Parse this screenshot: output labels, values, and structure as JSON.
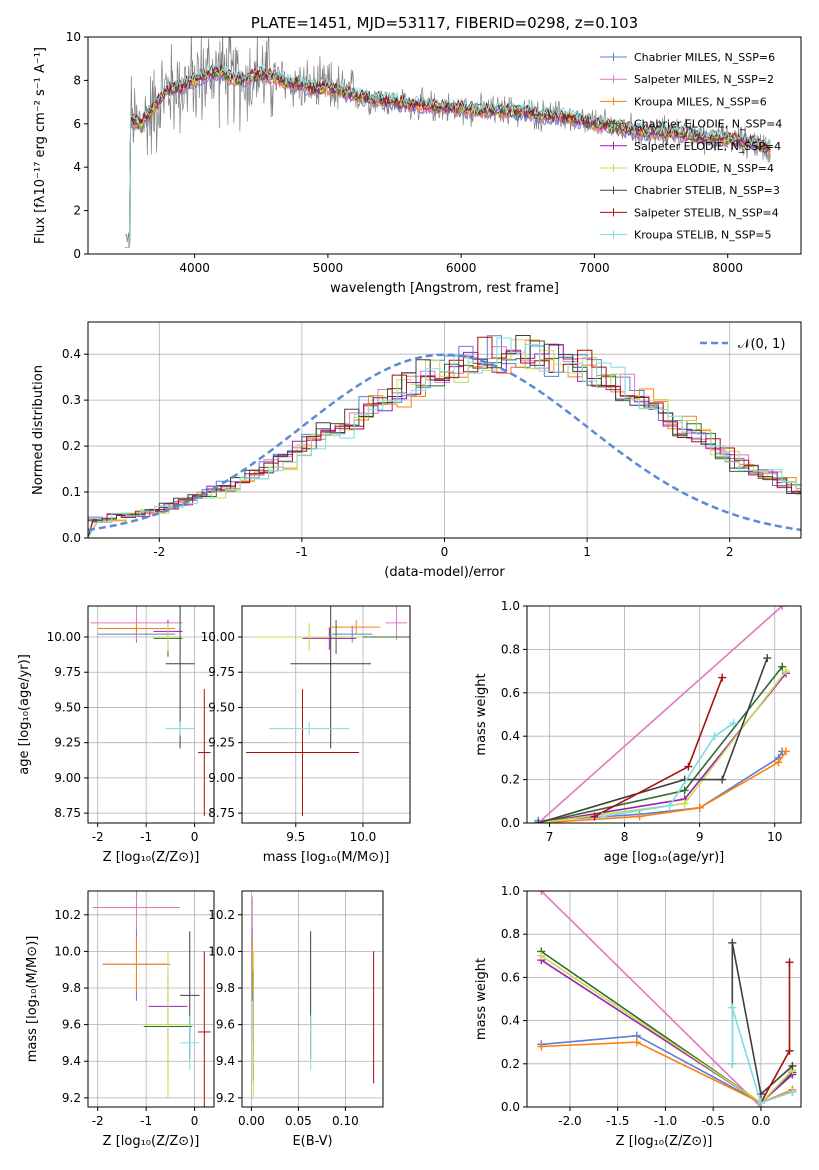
{
  "chart_data": [
    {
      "type": "line",
      "title": "PLATE=1451, MJD=53117, FIBERID=0298, z=0.103",
      "xlabel": "wavelength [Angstrom, rest frame]",
      "ylabel": "Flux [fλ10⁻¹⁷ erg cm⁻² s⁻¹ A⁻¹]",
      "xlim": [
        3200,
        8550
      ],
      "ylim": [
        0,
        10
      ],
      "xticks": [
        4000,
        5000,
        6000,
        7000,
        8000
      ],
      "yticks": [
        0,
        2,
        4,
        6,
        8,
        10
      ],
      "grid": false,
      "legend_position": "top-right",
      "data_series": {
        "name": "",
        "color": "#808080"
      },
      "series": [
        {
          "name": "Chabrier MILES, N_SSP=6",
          "color": "#5b7fd6"
        },
        {
          "name": "Salpeter MILES, N_SSP=2",
          "color": "#e377c2"
        },
        {
          "name": "Kroupa MILES, N_SSP=6",
          "color": "#ff7f0e"
        },
        {
          "name": "Chabrier ELODIE, N_SSP=4",
          "color": "#2e6b2e"
        },
        {
          "name": "Salpeter ELODIE, N_SSP=4",
          "color": "#9b1fb5"
        },
        {
          "name": "Kroupa ELODIE, N_SSP=4",
          "color": "#c8dc50"
        },
        {
          "name": "Chabrier STELIB, N_SSP=3",
          "color": "#404040"
        },
        {
          "name": "Salpeter STELIB, N_SSP=4",
          "color": "#a81010"
        },
        {
          "name": "Kroupa STELIB, N_SSP=5",
          "color": "#7fdde0"
        }
      ],
      "continuum": {
        "x": [
          3480,
          3600,
          3700,
          3800,
          3900,
          4000,
          4100,
          4200,
          4300,
          4400,
          4500,
          4600,
          4700,
          4800,
          4900,
          5000,
          5200,
          5400,
          5600,
          5800,
          6000,
          6200,
          6400,
          6600,
          6800,
          7000,
          7200,
          7400,
          7600,
          7800,
          8000,
          8200,
          8300
        ],
        "y": [
          6.1,
          6.0,
          6.8,
          7.6,
          7.7,
          8.0,
          8.3,
          8.4,
          8.0,
          8.1,
          8.3,
          8.1,
          7.9,
          7.8,
          7.6,
          7.7,
          7.3,
          7.1,
          6.9,
          6.8,
          6.7,
          6.6,
          6.6,
          6.4,
          6.3,
          6.0,
          5.8,
          5.6,
          5.6,
          5.4,
          5.3,
          5.1,
          4.9
        ]
      }
    },
    {
      "type": "bar",
      "title": "",
      "xlabel": "(data-model)/error",
      "ylabel": "Normed distribution",
      "xlim": [
        -2.5,
        2.5
      ],
      "ylim": [
        0,
        0.47
      ],
      "xticks": [
        -2,
        -1,
        0,
        1,
        2
      ],
      "yticks": [
        0.0,
        0.1,
        0.2,
        0.3,
        0.4
      ],
      "grid": true,
      "legend_position": "top-right",
      "reference": {
        "name": "𝒩(0, 1)",
        "color": "#5b8bd6",
        "mean": 0,
        "sigma": 1
      },
      "bin_edges_start": -2.5,
      "bin_width": 0.1,
      "histogram_envelope": [
        0.04,
        0.045,
        0.05,
        0.055,
        0.06,
        0.07,
        0.08,
        0.09,
        0.1,
        0.11,
        0.125,
        0.14,
        0.155,
        0.17,
        0.19,
        0.21,
        0.225,
        0.245,
        0.265,
        0.285,
        0.305,
        0.32,
        0.34,
        0.355,
        0.37,
        0.38,
        0.39,
        0.395,
        0.4,
        0.4,
        0.4,
        0.395,
        0.39,
        0.38,
        0.37,
        0.355,
        0.34,
        0.32,
        0.305,
        0.285,
        0.265,
        0.245,
        0.225,
        0.205,
        0.185,
        0.165,
        0.15,
        0.135,
        0.12,
        0.105
      ]
    },
    {
      "type": "scatter",
      "title": "",
      "xlabel": "Z [log₁₀(Z/Z⊙)]",
      "ylabel": "age  [log₁₀(age/yr)]",
      "xlim": [
        -2.2,
        0.4
      ],
      "ylim": [
        8.68,
        10.22
      ],
      "xticks": [
        -2,
        -1,
        0
      ],
      "yticks": [
        8.75,
        9.0,
        9.25,
        9.5,
        9.75,
        10.0
      ],
      "grid": true,
      "points": [
        {
          "x": -1.2,
          "y": 10.02,
          "xerr": 0.8,
          "yerr": 0.06,
          "color": "#5b7fd6"
        },
        {
          "x": -1.2,
          "y": 10.1,
          "xerr": 0.95,
          "yerr": 0.12,
          "color": "#e377c2"
        },
        {
          "x": -1.2,
          "y": 10.06,
          "xerr": 0.8,
          "yerr": 0.05,
          "color": "#ff7f0e"
        },
        {
          "x": -0.55,
          "y": 9.99,
          "xerr": 0.3,
          "yerr": 0.13,
          "color": "#2e6b2e"
        },
        {
          "x": -0.55,
          "y": 10.04,
          "xerr": 0.3,
          "yerr": 0.08,
          "color": "#9b1fb5"
        },
        {
          "x": -0.55,
          "y": 10.0,
          "xerr": 0.3,
          "yerr": 0.1,
          "color": "#c8dc50"
        },
        {
          "x": -0.3,
          "y": 9.81,
          "xerr": 0.3,
          "yerr": 0.6,
          "color": "#404040"
        },
        {
          "x": 0.2,
          "y": 9.18,
          "xerr": 0.13,
          "yerr": 0.45,
          "color": "#a81010"
        },
        {
          "x": -0.3,
          "y": 9.35,
          "xerr": 0.3,
          "yerr": 0.05,
          "color": "#7fdde0"
        }
      ]
    },
    {
      "type": "scatter",
      "title": "",
      "xlabel": "mass [log₁₀(M/M⊙)]",
      "ylabel": "",
      "xlim": [
        9.1,
        10.35
      ],
      "ylim": [
        8.68,
        10.22
      ],
      "xticks": [
        9.5,
        10.0
      ],
      "yticks": [
        8.75,
        9.0,
        9.25,
        9.5,
        9.75,
        10.0
      ],
      "grid": true,
      "points": [
        {
          "x": 9.92,
          "y": 10.02,
          "xerr": 0.15,
          "yerr": 0.06,
          "color": "#5b7fd6"
        },
        {
          "x": 10.25,
          "y": 10.1,
          "xerr": 0.08,
          "yerr": 0.12,
          "color": "#e377c2"
        },
        {
          "x": 9.95,
          "y": 10.07,
          "xerr": 0.18,
          "yerr": 0.05,
          "color": "#ff7f0e"
        },
        {
          "x": 9.8,
          "y": 10.0,
          "xerr": 0.55,
          "yerr": 0.12,
          "color": "#2e6b2e"
        },
        {
          "x": 9.75,
          "y": 9.99,
          "xerr": 0.2,
          "yerr": 0.08,
          "color": "#9b1fb5"
        },
        {
          "x": 9.6,
          "y": 10.0,
          "xerr": 0.4,
          "yerr": 0.1,
          "color": "#c8dc50"
        },
        {
          "x": 9.76,
          "y": 9.81,
          "xerr": 0.3,
          "yerr": 0.6,
          "color": "#404040"
        },
        {
          "x": 9.55,
          "y": 9.18,
          "xerr": 0.42,
          "yerr": 0.45,
          "color": "#a81010"
        },
        {
          "x": 9.6,
          "y": 9.35,
          "xerr": 0.3,
          "yerr": 0.05,
          "color": "#7fdde0"
        }
      ]
    },
    {
      "type": "line",
      "title": "",
      "xlabel": "age  [log₁₀(age/yr)]",
      "ylabel": "mass weight",
      "xlim": [
        6.7,
        10.35
      ],
      "ylim": [
        0,
        1
      ],
      "xticks": [
        7,
        8,
        9,
        10
      ],
      "yticks": [
        0.0,
        0.2,
        0.4,
        0.6,
        0.8,
        1.0
      ],
      "grid": true,
      "series": [
        {
          "color": "#5b7fd6",
          "x": [
            6.85,
            8.2,
            9.0,
            10.05,
            10.1
          ],
          "y": [
            0.01,
            0.04,
            0.07,
            0.3,
            0.33
          ]
        },
        {
          "color": "#e377c2",
          "x": [
            6.85,
            10.1
          ],
          "y": [
            0.0,
            1.0
          ]
        },
        {
          "color": "#ff7f0e",
          "x": [
            6.85,
            8.2,
            9.0,
            10.05,
            10.15
          ],
          "y": [
            0.0,
            0.03,
            0.07,
            0.28,
            0.33
          ]
        },
        {
          "color": "#2e6b2e",
          "x": [
            6.85,
            8.8,
            10.1
          ],
          "y": [
            0.0,
            0.15,
            0.72
          ]
        },
        {
          "color": "#9b1fb5",
          "x": [
            6.85,
            8.8,
            10.15
          ],
          "y": [
            0.0,
            0.11,
            0.69
          ]
        },
        {
          "color": "#c8dc50",
          "x": [
            6.85,
            8.8,
            10.15
          ],
          "y": [
            0.0,
            0.09,
            0.7
          ]
        },
        {
          "color": "#404040",
          "x": [
            6.85,
            8.8,
            9.3,
            9.9
          ],
          "y": [
            0.0,
            0.2,
            0.2,
            0.76
          ]
        },
        {
          "color": "#a81010",
          "x": [
            7.6,
            8.85,
            9.3
          ],
          "y": [
            0.03,
            0.26,
            0.67
          ]
        },
        {
          "color": "#7fdde0",
          "x": [
            7.7,
            8.6,
            9.2,
            9.45
          ],
          "y": [
            0.03,
            0.08,
            0.4,
            0.46
          ]
        }
      ]
    },
    {
      "type": "scatter",
      "title": "",
      "xlabel": "Z [log₁₀(Z/Z⊙)]",
      "ylabel": "mass [log₁₀(M/M⊙)]",
      "xlim": [
        -2.2,
        0.4
      ],
      "ylim": [
        9.15,
        10.33
      ],
      "xticks": [
        -2,
        -1,
        0
      ],
      "yticks": [
        9.2,
        9.4,
        9.6,
        9.8,
        10.0,
        10.2
      ],
      "grid": true,
      "points": [
        {
          "x": -1.2,
          "y": 9.93,
          "xerr": 0.7,
          "yerr": 0.2,
          "color": "#5b7fd6"
        },
        {
          "x": -1.2,
          "y": 10.24,
          "xerr": 0.9,
          "yerr": 0.12,
          "color": "#e377c2"
        },
        {
          "x": -1.2,
          "y": 9.93,
          "xerr": 0.65,
          "yerr": 0.15,
          "color": "#ff7f0e"
        },
        {
          "x": -0.55,
          "y": 9.59,
          "xerr": 0.5,
          "yerr": 0.3,
          "color": "#2e6b2e"
        },
        {
          "x": -0.55,
          "y": 9.7,
          "xerr": 0.4,
          "yerr": 0.2,
          "color": "#9b1fb5"
        },
        {
          "x": -0.55,
          "y": 9.6,
          "xerr": 0.55,
          "yerr": 0.4,
          "color": "#c8dc50"
        },
        {
          "x": -0.1,
          "y": 9.76,
          "xerr": 0.2,
          "yerr": 0.35,
          "color": "#404040"
        },
        {
          "x": 0.2,
          "y": 9.56,
          "xerr": 0.13,
          "yerr": 0.44,
          "color": "#a81010"
        },
        {
          "x": -0.1,
          "y": 9.5,
          "xerr": 0.2,
          "yerr": 0.15,
          "color": "#7fdde0"
        }
      ]
    },
    {
      "type": "scatter",
      "title": "",
      "xlabel": "E(B-V)",
      "ylabel": "",
      "xlim": [
        -0.01,
        0.14
      ],
      "ylim": [
        9.15,
        10.33
      ],
      "xticks": [
        0.0,
        0.05,
        0.1
      ],
      "yticks": [
        9.2,
        9.4,
        9.6,
        9.8,
        10.0,
        10.2
      ],
      "grid": true,
      "points": [
        {
          "x": 0.001,
          "y": 9.93,
          "yerr": 0.2,
          "color": "#5b7fd6"
        },
        {
          "x": 0.001,
          "y": 10.2,
          "yerr": 0.1,
          "color": "#e377c2"
        },
        {
          "x": 0.001,
          "y": 9.93,
          "yerr": 0.15,
          "color": "#ff7f0e"
        },
        {
          "x": 0.002,
          "y": 9.59,
          "yerr": 0.3,
          "color": "#2e6b2e"
        },
        {
          "x": 0.002,
          "y": 9.7,
          "yerr": 0.2,
          "color": "#9b1fb5"
        },
        {
          "x": 0.002,
          "y": 9.6,
          "yerr": 0.4,
          "color": "#c8dc50"
        },
        {
          "x": 0.063,
          "y": 9.76,
          "yerr": 0.35,
          "color": "#404040"
        },
        {
          "x": 0.13,
          "y": 9.64,
          "yerr": 0.36,
          "color": "#a81010"
        },
        {
          "x": 0.063,
          "y": 9.5,
          "yerr": 0.15,
          "color": "#7fdde0"
        }
      ]
    },
    {
      "type": "line",
      "title": "",
      "xlabel": "Z [log₁₀(Z/Z⊙)]",
      "ylabel": "mass weight",
      "xlim": [
        -2.45,
        0.42
      ],
      "ylim": [
        0,
        1
      ],
      "xticks": [
        -2.0,
        -1.5,
        -1.0,
        -0.5,
        0.0
      ],
      "yticks": [
        0.0,
        0.2,
        0.4,
        0.6,
        0.8,
        1.0
      ],
      "grid": true,
      "series": [
        {
          "color": "#5b7fd6",
          "x": [
            -2.3,
            -1.3,
            0.0,
            0.33
          ],
          "y": [
            0.29,
            0.33,
            0.02,
            0.07
          ]
        },
        {
          "color": "#e377c2",
          "x": [
            -2.3,
            0.0
          ],
          "y": [
            1.0,
            0.0
          ]
        },
        {
          "color": "#ff7f0e",
          "x": [
            -2.3,
            -1.3,
            0.0,
            0.33
          ],
          "y": [
            0.28,
            0.3,
            0.02,
            0.08
          ]
        },
        {
          "color": "#2e6b2e",
          "x": [
            -2.3,
            0.0,
            0.33
          ],
          "y": [
            0.72,
            0.02,
            0.16
          ]
        },
        {
          "color": "#9b1fb5",
          "x": [
            -2.3,
            0.0,
            0.33
          ],
          "y": [
            0.68,
            0.02,
            0.15
          ]
        },
        {
          "color": "#c8dc50",
          "x": [
            -2.3,
            0.0,
            0.33
          ],
          "y": [
            0.7,
            0.02,
            0.17
          ]
        },
        {
          "color": "#404040",
          "x": [
            -0.3,
            -0.3,
            0.0,
            0.33
          ],
          "y": [
            0.2,
            0.76,
            0.06,
            0.19
          ]
        },
        {
          "color": "#a81010",
          "x": [
            0.0,
            0.3,
            0.3
          ],
          "y": [
            0.02,
            0.26,
            0.67
          ]
        },
        {
          "color": "#7fdde0",
          "x": [
            -0.3,
            -0.3,
            0.0,
            0.33
          ],
          "y": [
            0.2,
            0.46,
            0.02,
            0.07
          ]
        }
      ]
    }
  ]
}
